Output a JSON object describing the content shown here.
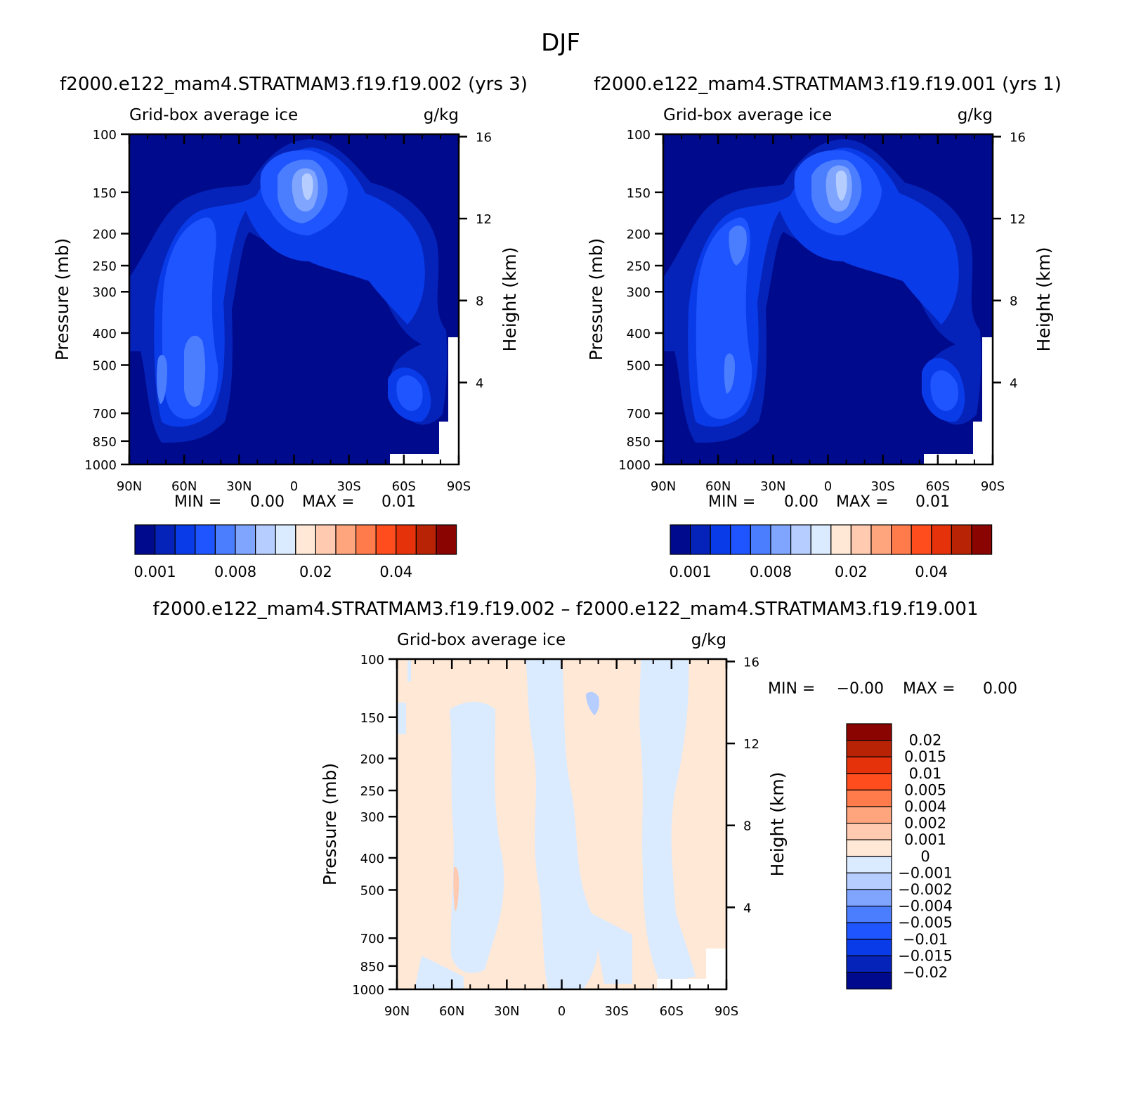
{
  "page_title": "DJF",
  "chart_data": [
    {
      "type": "heatmap",
      "id": "panel1",
      "case_title": "f2000.e122_mam4.STRATMAM3.f19.f19.002 (yrs 3)",
      "title": "Grid-box average ice",
      "units": "g/kg",
      "ylabel": "Pressure (mb)",
      "ylabel_right": "Height (km)",
      "x_ticks": [
        "90N",
        "60N",
        "30N",
        "0",
        "30S",
        "60S",
        "90S"
      ],
      "xlim": [
        -90,
        90
      ],
      "y_ticks": [
        "100",
        "150",
        "200",
        "250",
        "300",
        "400",
        "500",
        "700",
        "850",
        "1000"
      ],
      "ylim": [
        1000,
        100
      ],
      "y_scale": "log",
      "right_ticks": [
        "16",
        "12",
        "8",
        "4"
      ],
      "min_label": "MIN =",
      "min_value": "0.00",
      "max_label": "MAX =",
      "max_value": "0.01",
      "colorbar": {
        "orientation": "horizontal",
        "tick_labels": [
          "0.001",
          "0.008",
          "0.02",
          "0.04"
        ],
        "colors": [
          "#000a8c",
          "#0523b8",
          "#0a3be8",
          "#1e55ff",
          "#4b7dff",
          "#7fa5ff",
          "#b5cdff",
          "#daeaff",
          "#ffe8d6",
          "#ffcab0",
          "#ffa57e",
          "#ff7b4c",
          "#ff4d1e",
          "#e5320a",
          "#b82205",
          "#8a0502"
        ]
      }
    },
    {
      "type": "heatmap",
      "id": "panel2",
      "case_title": "f2000.e122_mam4.STRATMAM3.f19.f19.001 (yrs 1)",
      "title": "Grid-box average ice",
      "units": "g/kg",
      "ylabel": "Pressure (mb)",
      "ylabel_right": "Height (km)",
      "x_ticks": [
        "90N",
        "60N",
        "30N",
        "0",
        "30S",
        "60S",
        "90S"
      ],
      "xlim": [
        -90,
        90
      ],
      "y_ticks": [
        "100",
        "150",
        "200",
        "250",
        "300",
        "400",
        "500",
        "700",
        "850",
        "1000"
      ],
      "ylim": [
        1000,
        100
      ],
      "y_scale": "log",
      "right_ticks": [
        "16",
        "12",
        "8",
        "4"
      ],
      "min_label": "MIN =",
      "min_value": "0.00",
      "max_label": "MAX =",
      "max_value": "0.01",
      "colorbar": {
        "orientation": "horizontal",
        "tick_labels": [
          "0.001",
          "0.008",
          "0.02",
          "0.04"
        ],
        "colors": [
          "#000a8c",
          "#0523b8",
          "#0a3be8",
          "#1e55ff",
          "#4b7dff",
          "#7fa5ff",
          "#b5cdff",
          "#daeaff",
          "#ffe8d6",
          "#ffcab0",
          "#ffa57e",
          "#ff7b4c",
          "#ff4d1e",
          "#e5320a",
          "#b82205",
          "#8a0502"
        ]
      }
    },
    {
      "type": "heatmap",
      "id": "panel3",
      "case_title": "f2000.e122_mam4.STRATMAM3.f19.f19.002 – f2000.e122_mam4.STRATMAM3.f19.f19.001",
      "title": "Grid-box average ice",
      "units": "g/kg",
      "ylabel": "Pressure (mb)",
      "ylabel_right": "Height (km)",
      "x_ticks": [
        "90N",
        "60N",
        "30N",
        "0",
        "30S",
        "60S",
        "90S"
      ],
      "xlim": [
        -90,
        90
      ],
      "y_ticks": [
        "100",
        "150",
        "200",
        "250",
        "300",
        "400",
        "500",
        "700",
        "850",
        "1000"
      ],
      "ylim": [
        1000,
        100
      ],
      "y_scale": "log",
      "right_ticks": [
        "16",
        "12",
        "8",
        "4"
      ],
      "min_label": "MIN =",
      "min_value": "−0.00",
      "max_label": "MAX =",
      "max_value": "0.00",
      "colorbar": {
        "orientation": "vertical",
        "tick_labels": [
          "0.02",
          "0.015",
          "0.01",
          "0.005",
          "0.004",
          "0.002",
          "0.001",
          "0",
          "−0.001",
          "−0.002",
          "−0.004",
          "−0.005",
          "−0.01",
          "−0.015",
          "−0.02"
        ],
        "colors": [
          "#8a0502",
          "#b82205",
          "#e5320a",
          "#ff4d1e",
          "#ff7b4c",
          "#ffa57e",
          "#ffcab0",
          "#ffe8d6",
          "#daeaff",
          "#b5cdff",
          "#7fa5ff",
          "#4b7dff",
          "#1e55ff",
          "#0a3be8",
          "#0523b8",
          "#000a8c"
        ]
      }
    }
  ]
}
